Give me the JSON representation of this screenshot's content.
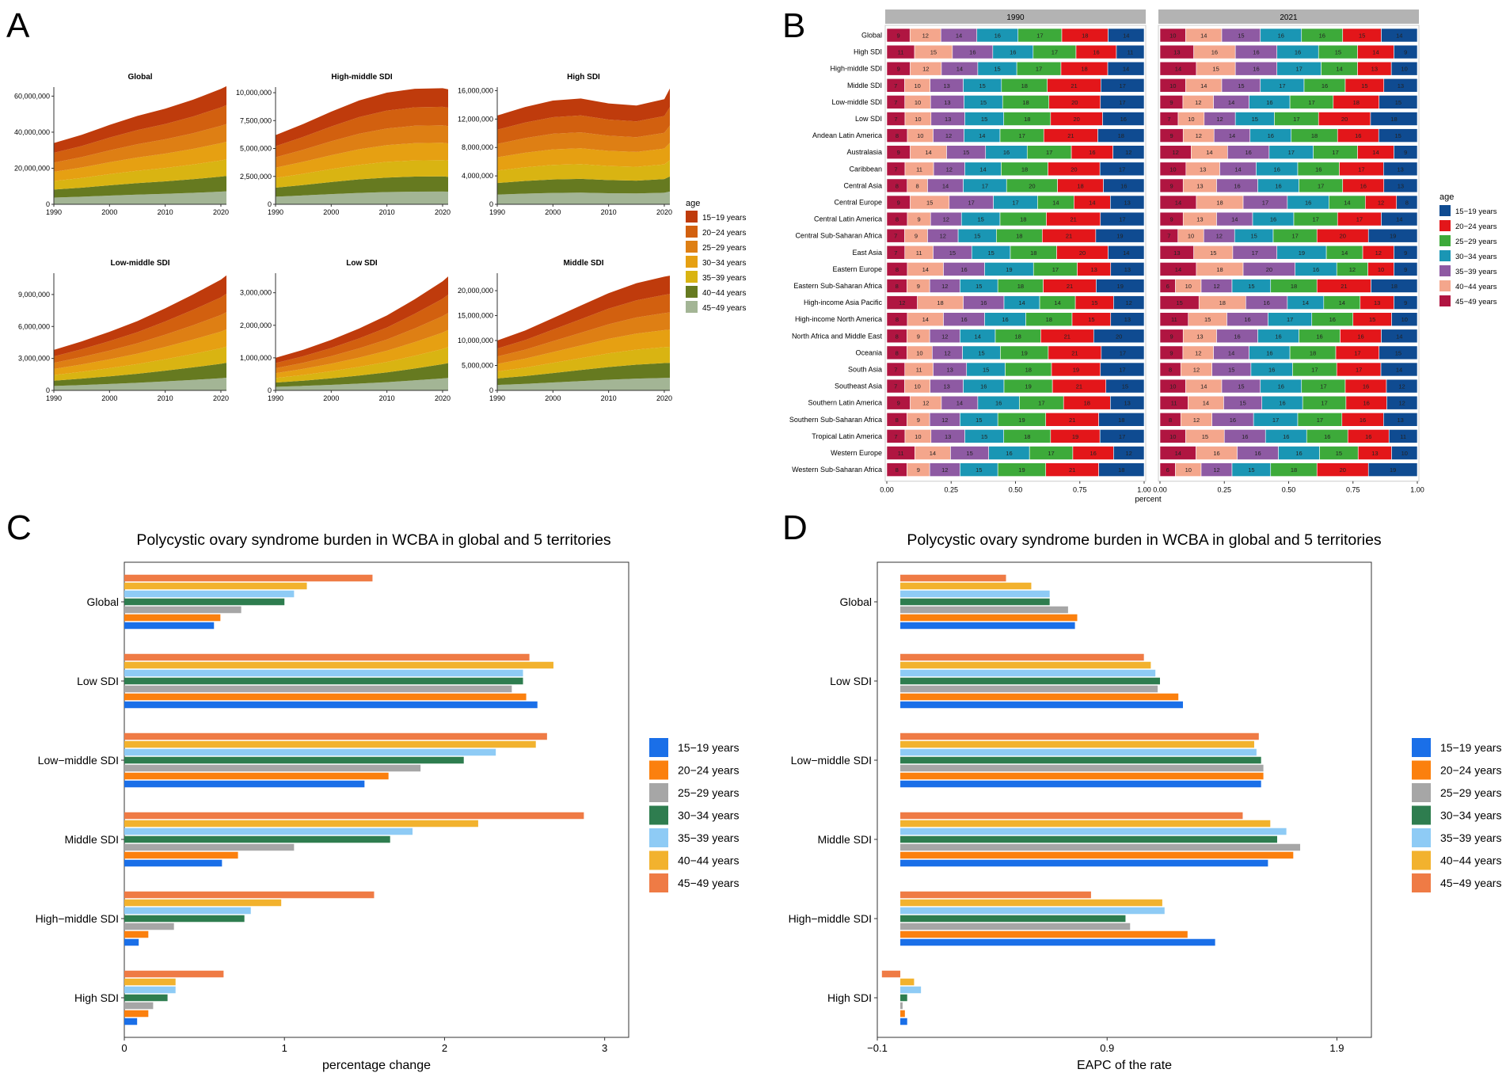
{
  "panel_labels": {
    "a": "A",
    "b": "B",
    "c": "C",
    "d": "D"
  },
  "chart_data": [
    {
      "id": "A",
      "type": "area",
      "stacking": "stacked",
      "legend_title": "age",
      "age_groups": [
        "15−19 years",
        "20−24 years",
        "25−29 years",
        "30−34 years",
        "35−39 years",
        "40−44 years",
        "45−49 years"
      ],
      "colors": [
        "#bf3b0c",
        "#d2600f",
        "#de7f14",
        "#e6a012",
        "#d9b412",
        "#667a20",
        "#a3b595"
      ],
      "x": [
        1990,
        1995,
        2000,
        2005,
        2010,
        2015,
        2020,
        2021
      ],
      "xticks": [
        1990,
        2000,
        2010,
        2020
      ],
      "panels": [
        {
          "title": "Global",
          "ymax": 65000000,
          "yticks": [
            0,
            20000000,
            40000000,
            60000000
          ],
          "ytick_labels": [
            "0",
            "20,000,000",
            "40,000,000",
            "60,000,000"
          ],
          "totals": [
            34000000,
            38500000,
            44000000,
            49000000,
            53000000,
            58000000,
            64000000,
            65500000
          ]
        },
        {
          "title": "High-middle SDI",
          "ymax": 10500000,
          "yticks": [
            0,
            2500000,
            5000000,
            7500000,
            10000000
          ],
          "ytick_labels": [
            "0",
            "2,500,000",
            "5,000,000",
            "7,500,000",
            "10,000,000"
          ],
          "totals": [
            6200000,
            7200000,
            8300000,
            9300000,
            10000000,
            10350000,
            10400000,
            10300000
          ]
        },
        {
          "title": "High SDI",
          "ymax": 16500000,
          "yticks": [
            0,
            4000000,
            8000000,
            12000000,
            16000000
          ],
          "ytick_labels": [
            "0",
            "4,000,000",
            "8,000,000",
            "12,000,000",
            "16,000,000"
          ],
          "totals": [
            12500000,
            13700000,
            14600000,
            14900000,
            14200000,
            13900000,
            14800000,
            16300000
          ]
        },
        {
          "title": "Low-middle SDI",
          "ymax": 11000000,
          "yticks": [
            0,
            3000000,
            6000000,
            9000000
          ],
          "ytick_labels": [
            "0",
            "3,000,000",
            "6,000,000",
            "9,000,000"
          ],
          "totals": [
            3800000,
            4600000,
            5500000,
            6500000,
            7700000,
            9000000,
            10400000,
            10800000
          ]
        },
        {
          "title": "Low SDI",
          "ymax": 3600000,
          "yticks": [
            0,
            1000000,
            2000000,
            3000000
          ],
          "ytick_labels": [
            "0",
            "1,000,000",
            "2,000,000",
            "3,000,000"
          ],
          "totals": [
            1000000,
            1250000,
            1550000,
            1900000,
            2300000,
            2800000,
            3350000,
            3500000
          ]
        },
        {
          "title": "Middle SDI",
          "ymax": 23500000,
          "yticks": [
            0,
            5000000,
            10000000,
            15000000,
            20000000
          ],
          "ytick_labels": [
            "0",
            "5,000,000",
            "10,000,000",
            "15,000,000",
            "20,000,000"
          ],
          "totals": [
            10000000,
            12000000,
            14500000,
            17000000,
            19500000,
            21500000,
            22800000,
            23000000
          ]
        }
      ]
    },
    {
      "id": "B",
      "type": "bar",
      "orientation": "horizontal",
      "stacking": "percent",
      "facets": [
        "1990",
        "2021"
      ],
      "xlabel": "percent",
      "xticks": [
        "0.00",
        "0.25",
        "0.50",
        "0.75",
        "1.00"
      ],
      "legend_title": "age",
      "legend_items": [
        "15−19 years",
        "20−24 years",
        "25−29 years",
        "30−34 years",
        "35−39 years",
        "40−44 years",
        "45−49 years"
      ],
      "legend_colors": [
        "#0f4b91",
        "#e3161a",
        "#3daa3a",
        "#1a96b4",
        "#8e5aa3",
        "#f4a68c",
        "#b01541"
      ],
      "segment_order": [
        "45−49",
        "40−44",
        "35−39",
        "30−34",
        "25−29",
        "20−24",
        "15−19"
      ],
      "segment_colors": [
        "#b01541",
        "#f4a68c",
        "#8e5aa3",
        "#1a96b4",
        "#3daa3a",
        "#e3161a",
        "#0f4b91"
      ],
      "regions": [
        "Global",
        "High SDI",
        "High-middle SDI",
        "Middle SDI",
        "Low-middle SDI",
        "Low SDI",
        "Andean Latin America",
        "Australasia",
        "Caribbean",
        "Central Asia",
        "Central Europe",
        "Central Latin America",
        "Central Sub-Saharan Africa",
        "East Asia",
        "Eastern Europe",
        "Eastern Sub-Saharan Africa",
        "High-income Asia Pacific",
        "High-income North America",
        "North Africa and Middle East",
        "Oceania",
        "South Asia",
        "Southeast Asia",
        "Southern Latin America",
        "Southern Sub-Saharan Africa",
        "Tropical Latin America",
        "Western Europe",
        "Western Sub-Saharan Africa"
      ],
      "values_1990": [
        [
          9,
          12,
          14,
          16,
          17,
          18,
          14
        ],
        [
          11,
          15,
          16,
          16,
          17,
          16,
          11
        ],
        [
          9,
          12,
          14,
          15,
          17,
          18,
          14
        ],
        [
          7,
          10,
          13,
          15,
          18,
          21,
          17
        ],
        [
          7,
          10,
          13,
          15,
          18,
          20,
          17
        ],
        [
          7,
          10,
          13,
          15,
          18,
          20,
          16
        ],
        [
          8,
          10,
          12,
          14,
          17,
          21,
          18
        ],
        [
          9,
          14,
          15,
          16,
          17,
          16,
          12
        ],
        [
          7,
          11,
          12,
          14,
          18,
          20,
          17
        ],
        [
          8,
          8,
          14,
          17,
          20,
          18,
          16
        ],
        [
          9,
          15,
          17,
          17,
          14,
          14,
          13
        ],
        [
          8,
          9,
          12,
          15,
          18,
          21,
          17
        ],
        [
          7,
          9,
          12,
          15,
          18,
          21,
          19
        ],
        [
          7,
          11,
          15,
          15,
          18,
          20,
          14
        ],
        [
          8,
          14,
          16,
          19,
          17,
          13,
          13
        ],
        [
          8,
          9,
          12,
          15,
          18,
          21,
          19
        ],
        [
          12,
          18,
          16,
          14,
          14,
          15,
          12
        ],
        [
          8,
          14,
          16,
          16,
          18,
          15,
          13
        ],
        [
          8,
          9,
          12,
          14,
          18,
          21,
          20
        ],
        [
          8,
          10,
          12,
          15,
          19,
          21,
          17
        ],
        [
          7,
          11,
          13,
          15,
          18,
          19,
          17
        ],
        [
          7,
          10,
          13,
          16,
          19,
          21,
          15
        ],
        [
          9,
          12,
          14,
          16,
          17,
          18,
          13
        ],
        [
          8,
          9,
          12,
          15,
          19,
          21,
          18
        ],
        [
          7,
          10,
          13,
          15,
          18,
          19,
          17
        ],
        [
          11,
          14,
          15,
          16,
          17,
          16,
          12
        ],
        [
          8,
          9,
          12,
          15,
          19,
          21,
          18
        ]
      ],
      "values_2021": [
        [
          10,
          14,
          15,
          16,
          16,
          15,
          14
        ],
        [
          13,
          16,
          16,
          16,
          15,
          14,
          9
        ],
        [
          14,
          15,
          16,
          17,
          14,
          13,
          10
        ],
        [
          10,
          14,
          15,
          17,
          16,
          15,
          13
        ],
        [
          9,
          12,
          14,
          16,
          17,
          18,
          15
        ],
        [
          7,
          10,
          12,
          15,
          17,
          20,
          18
        ],
        [
          9,
          12,
          14,
          16,
          18,
          16,
          15
        ],
        [
          12,
          14,
          16,
          17,
          17,
          14,
          9
        ],
        [
          10,
          13,
          14,
          16,
          16,
          17,
          13
        ],
        [
          9,
          13,
          16,
          16,
          17,
          16,
          13
        ],
        [
          14,
          18,
          17,
          16,
          14,
          12,
          8
        ],
        [
          9,
          13,
          14,
          16,
          17,
          17,
          14
        ],
        [
          7,
          10,
          12,
          15,
          17,
          20,
          19
        ],
        [
          13,
          15,
          17,
          19,
          14,
          12,
          9
        ],
        [
          14,
          18,
          20,
          16,
          12,
          10,
          9
        ],
        [
          6,
          10,
          12,
          15,
          18,
          21,
          18
        ],
        [
          15,
          18,
          16,
          14,
          14,
          13,
          9
        ],
        [
          11,
          15,
          16,
          17,
          16,
          15,
          10
        ],
        [
          9,
          13,
          16,
          16,
          16,
          16,
          14
        ],
        [
          9,
          12,
          14,
          16,
          18,
          17,
          15
        ],
        [
          8,
          12,
          15,
          16,
          17,
          17,
          14
        ],
        [
          10,
          14,
          15,
          16,
          17,
          16,
          12
        ],
        [
          11,
          14,
          15,
          16,
          17,
          16,
          12
        ],
        [
          8,
          12,
          16,
          17,
          17,
          16,
          13
        ],
        [
          10,
          15,
          16,
          16,
          16,
          16,
          11
        ],
        [
          14,
          16,
          16,
          16,
          15,
          13,
          10
        ],
        [
          6,
          10,
          12,
          15,
          18,
          20,
          19
        ]
      ]
    },
    {
      "id": "C",
      "type": "bar",
      "orientation": "horizontal",
      "title": "Polycystic ovary syndrome burden in WCBA in global and 5 territories",
      "xlabel": "percentage change",
      "xlim": [
        0,
        3.15
      ],
      "xticks": [
        0,
        1,
        2,
        3
      ],
      "categories": [
        "Global",
        "Low SDI",
        "Low−middle SDI",
        "Middle SDI",
        "High−middle SDI",
        "High SDI"
      ],
      "legend": [
        "15−19 years",
        "20−24 years",
        "25−29 years",
        "30−34 years",
        "35−39 years",
        "40−44 years",
        "45−49 years"
      ],
      "colors": [
        "#1a6fe8",
        "#fb800e",
        "#a6a6a6",
        "#2e7d4f",
        "#8ecbf5",
        "#f2b22e",
        "#ef7b45"
      ],
      "series": [
        {
          "name": "15−19 years",
          "values": [
            0.56,
            2.58,
            1.5,
            0.61,
            0.09,
            0.08
          ]
        },
        {
          "name": "20−24 years",
          "values": [
            0.6,
            2.51,
            1.65,
            0.71,
            0.15,
            0.15
          ]
        },
        {
          "name": "25−29 years",
          "values": [
            0.73,
            2.42,
            1.85,
            1.06,
            0.31,
            0.18
          ]
        },
        {
          "name": "30−34 years",
          "values": [
            1.0,
            2.49,
            2.12,
            1.66,
            0.75,
            0.27
          ]
        },
        {
          "name": "35−39 years",
          "values": [
            1.06,
            2.49,
            2.32,
            1.8,
            0.79,
            0.32
          ]
        },
        {
          "name": "40−44 years",
          "values": [
            1.14,
            2.68,
            2.57,
            2.21,
            0.98,
            0.32
          ]
        },
        {
          "name": "45−49 years",
          "values": [
            1.55,
            2.53,
            2.64,
            2.87,
            1.56,
            0.62
          ]
        }
      ]
    },
    {
      "id": "D",
      "type": "bar",
      "orientation": "horizontal",
      "title": "Polycystic ovary syndrome burden in WCBA in global and 5 territories",
      "xlabel": "EAPC of the rate",
      "xlim": [
        -0.1,
        2.05
      ],
      "xticks": [
        -0.1,
        0.9,
        1.9
      ],
      "xtick_labels": [
        "−0.1",
        "0.9",
        "1.9"
      ],
      "categories": [
        "Global",
        "Low SDI",
        "Low−middle SDI",
        "Middle SDI",
        "High−middle SDI",
        "High SDI"
      ],
      "legend": [
        "15−19 years",
        "20−24 years",
        "25−29 years",
        "30−34 years",
        "35−39 years",
        "40−44 years",
        "45−49 years"
      ],
      "colors": [
        "#1a6fe8",
        "#fb800e",
        "#a6a6a6",
        "#2e7d4f",
        "#8ecbf5",
        "#f2b22e",
        "#ef7b45"
      ],
      "series": [
        {
          "name": "15−19 years",
          "values": [
            0.76,
            1.23,
            1.57,
            1.6,
            1.37,
            0.03
          ]
        },
        {
          "name": "20−24 years",
          "values": [
            0.77,
            1.21,
            1.58,
            1.71,
            1.25,
            0.02
          ]
        },
        {
          "name": "25−29 years",
          "values": [
            0.73,
            1.12,
            1.58,
            1.74,
            1.0,
            0.01
          ]
        },
        {
          "name": "30−34 years",
          "values": [
            0.65,
            1.13,
            1.57,
            1.64,
            0.98,
            0.03
          ]
        },
        {
          "name": "35−39 years",
          "values": [
            0.65,
            1.11,
            1.55,
            1.68,
            1.15,
            0.09
          ]
        },
        {
          "name": "40−44 years",
          "values": [
            0.57,
            1.09,
            1.54,
            1.61,
            1.14,
            0.06
          ]
        },
        {
          "name": "45−49 years",
          "values": [
            0.46,
            1.06,
            1.56,
            1.49,
            0.83,
            -0.08
          ]
        }
      ]
    }
  ]
}
